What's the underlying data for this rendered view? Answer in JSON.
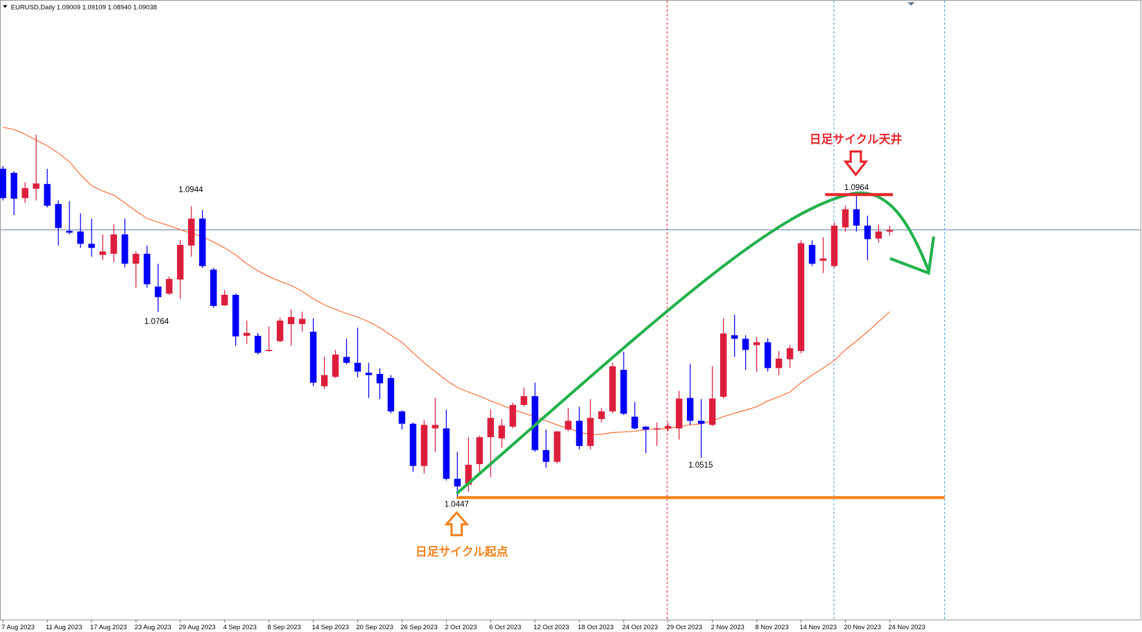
{
  "chart_data": {
    "type": "candlestick",
    "title": "EURUSD,Daily  1.09009 1.09109 1.08940 1.09038",
    "categories": [
      "7 Aug 2023",
      null,
      null,
      null,
      "11 Aug 2023",
      null,
      null,
      null,
      "17 Aug 2023",
      null,
      null,
      null,
      "23 Aug 2023",
      null,
      null,
      null,
      "29 Aug 2023",
      null,
      null,
      null,
      "4 Sep 2023",
      null,
      null,
      null,
      "8 Sep 2023",
      null,
      null,
      null,
      "14 Sep 2023",
      null,
      null,
      null,
      "20 Sep 2023",
      null,
      null,
      null,
      "26 Sep 2023",
      null,
      null,
      null,
      "2 Oct 2023",
      null,
      null,
      null,
      "6 Oct 2023",
      null,
      null,
      null,
      "12 Oct 2023",
      null,
      null,
      null,
      "18 Oct 2023",
      null,
      null,
      null,
      "24 Oct 2023",
      null,
      null,
      null,
      "29 Oct 2023",
      null,
      null,
      null,
      "2 Nov 2023",
      null,
      null,
      null,
      "8 Nov 2023",
      null,
      null,
      null,
      "14 Nov 2023",
      null,
      null,
      null,
      "20 Nov 2023",
      null,
      null,
      null,
      "24 Nov 2023"
    ],
    "open": [
      1.1008,
      1.1001,
      1.0958,
      1.0974,
      1.0982,
      1.0948,
      1.0902,
      1.0901,
      1.088,
      1.0861,
      1.0863,
      1.0896,
      1.0846,
      1.0863,
      1.0807,
      1.0795,
      1.0819,
      1.0877,
      1.0923,
      1.0836,
      1.0775,
      1.0793,
      1.0723,
      1.0723,
      1.0697,
      1.0714,
      1.0743,
      1.0743,
      1.073,
      1.0637,
      1.0653,
      1.0687,
      1.0677,
      1.066,
      1.0658,
      1.0651,
      1.0594,
      1.0573,
      1.0501,
      1.0565,
      1.0565,
      1.0479,
      1.0469,
      1.0504,
      1.055,
      1.0548,
      1.0568,
      1.0605,
      1.062,
      1.0528,
      1.0508,
      1.0563,
      1.0578,
      1.0535,
      1.0581,
      1.0594,
      1.0665,
      1.0585,
      1.0568,
      1.0563,
      1.0565,
      1.0565,
      1.0617,
      1.0578,
      1.0571,
      1.0619,
      1.0724,
      1.0718,
      1.0707,
      1.0712,
      1.0668,
      1.0683,
      1.0697,
      1.0878,
      1.0851,
      1.0842,
      1.0908,
      1.0939,
      1.0911,
      1.0889,
      1.09009
    ],
    "high": [
      1.1013,
      1.1004,
      1.0985,
      1.1066,
      1.1008,
      1.0954,
      1.0953,
      1.0932,
      1.0923,
      1.0896,
      1.0913,
      1.0923,
      1.0867,
      1.0877,
      1.0846,
      1.0824,
      1.0886,
      1.0944,
      1.0938,
      1.0839,
      1.0801,
      1.0795,
      1.0749,
      1.0728,
      1.0739,
      1.0754,
      1.0768,
      1.0764,
      1.0753,
      1.0687,
      1.0699,
      1.0718,
      1.0737,
      1.0677,
      1.0668,
      1.0656,
      1.0596,
      1.0575,
      1.0579,
      1.0617,
      1.0597,
      1.0525,
      1.055,
      1.0553,
      1.0597,
      1.0581,
      1.0609,
      1.0635,
      1.0643,
      1.0563,
      1.056,
      1.06,
      1.0602,
      1.0615,
      1.06,
      1.0677,
      1.0696,
      1.061,
      1.0569,
      1.0575,
      1.0575,
      1.0629,
      1.0675,
      1.0615,
      1.0671,
      1.0753,
      1.0759,
      1.0724,
      1.0721,
      1.0719,
      1.0697,
      1.0707,
      1.0886,
      1.0886,
      1.0891,
      1.0917,
      1.0945,
      1.0964,
      1.0928,
      1.0913,
      1.09109
    ],
    "low": [
      1.0954,
      1.0929,
      1.095,
      1.0954,
      1.0942,
      1.0877,
      1.0896,
      1.0873,
      1.0858,
      1.0852,
      1.0849,
      1.084,
      1.0805,
      1.0805,
      1.0764,
      1.0793,
      1.0786,
      1.0858,
      1.0839,
      1.0771,
      1.0774,
      1.0706,
      1.0709,
      1.0691,
      1.0696,
      1.0712,
      1.0706,
      1.073,
      1.0637,
      1.0633,
      1.0651,
      1.0674,
      1.0652,
      1.0617,
      1.0615,
      1.0591,
      1.0563,
      1.0491,
      1.0488,
      1.0525,
      1.0476,
      1.0447,
      1.0457,
      1.0488,
      1.0482,
      1.0532,
      1.0565,
      1.0603,
      1.0525,
      1.0498,
      1.0505,
      1.056,
      1.0529,
      1.0529,
      1.0575,
      1.0591,
      1.0588,
      1.0563,
      1.0523,
      1.0535,
      1.056,
      1.0546,
      1.0571,
      1.0515,
      1.0569,
      1.0616,
      1.0687,
      1.0665,
      1.0662,
      1.0662,
      1.0656,
      1.0668,
      1.0693,
      1.0842,
      1.083,
      1.0839,
      1.0901,
      1.0901,
      1.0852,
      1.0882,
      1.0894
    ],
    "close": [
      1.0958,
      1.0957,
      1.0975,
      1.0983,
      1.0945,
      1.0907,
      1.0899,
      1.088,
      1.0873,
      1.0867,
      1.0896,
      1.0846,
      1.0863,
      1.0811,
      1.0789,
      1.082,
      1.0878,
      1.0923,
      1.0842,
      1.0774,
      1.0793,
      1.0722,
      1.0728,
      1.0694,
      1.0699,
      1.0749,
      1.0755,
      1.0752,
      1.0643,
      1.0656,
      1.0691,
      1.0677,
      1.0662,
      1.0656,
      1.0642,
      1.0594,
      1.0573,
      1.0501,
      1.0571,
      1.0571,
      1.0479,
      1.0466,
      1.0503,
      1.055,
      1.0583,
      1.057,
      1.0605,
      1.062,
      1.0528,
      1.0508,
      1.056,
      1.0578,
      1.0535,
      1.0583,
      1.0594,
      1.0671,
      1.059,
      1.0565,
      1.0563,
      1.0565,
      1.0569,
      1.0616,
      1.0578,
      1.0573,
      1.0616,
      1.0727,
      1.0718,
      1.0699,
      1.0712,
      1.0668,
      1.0684,
      1.0702,
      1.0881,
      1.0846,
      1.0855,
      1.0911,
      1.0939,
      1.0911,
      1.0888,
      1.0901,
      1.09038
    ],
    "up_color": "#dc1e3c",
    "down_color": "#0000ff",
    "ma": {
      "color": "#ff5a1e",
      "values": [
        1.1079,
        1.1075,
        1.1067,
        1.1057,
        1.1047,
        1.1035,
        1.102,
        1.0998,
        1.0979,
        1.097,
        1.0963,
        1.095,
        1.0936,
        1.0923,
        1.0917,
        1.0911,
        1.0904,
        1.0898,
        1.0892,
        1.0883,
        1.0873,
        1.0861,
        1.0846,
        1.0834,
        1.0824,
        1.0816,
        1.0809,
        1.0799,
        1.0786,
        1.0776,
        1.0768,
        1.0761,
        1.0755,
        1.0747,
        1.0737,
        1.0724,
        1.0712,
        1.0694,
        1.0677,
        1.0662,
        1.0647,
        1.0635,
        1.0627,
        1.062,
        1.0612,
        1.0605,
        1.0597,
        1.0591,
        1.0585,
        1.0578,
        1.0571,
        1.0565,
        1.0559,
        1.0554,
        1.0555,
        1.0558,
        1.0559,
        1.056,
        1.0563,
        1.0564,
        1.0565,
        1.0568,
        1.0571,
        1.0573,
        1.0578,
        1.0585,
        1.0591,
        1.0596,
        1.0602,
        1.0612,
        1.0619,
        1.0627,
        1.0643,
        1.0656,
        1.0668,
        1.0681,
        1.0699,
        1.0714,
        1.073,
        1.0747,
        1.0764
      ]
    },
    "ylim": [
      1.024,
      1.1296
    ],
    "price_labels": [
      "1.0944",
      "1.0764",
      "1.0447",
      "1.0964",
      "1.0515"
    ],
    "cycle_top": "日足サイクル天井",
    "cycle_start": "日足サイクル起点"
  }
}
